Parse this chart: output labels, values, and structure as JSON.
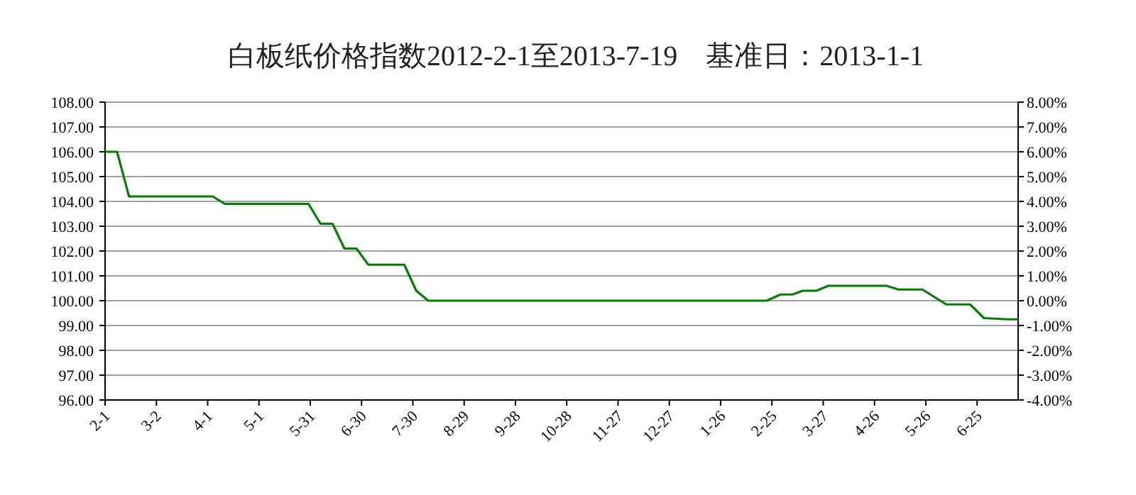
{
  "chart_data": {
    "type": "line",
    "title": "白板纸价格指数2012-2-1至2013-7-19　基准日：2013-1-1",
    "x": [
      "2012-02-01",
      "2012-02-08",
      "2012-02-15",
      "2012-04-04",
      "2012-04-11",
      "2012-05-30",
      "2012-06-06",
      "2012-06-13",
      "2012-06-20",
      "2012-06-27",
      "2012-07-04",
      "2012-07-25",
      "2012-08-01",
      "2012-08-08",
      "2013-02-22",
      "2013-03-02",
      "2013-03-09",
      "2013-03-15",
      "2013-03-23",
      "2013-03-30",
      "2013-05-03",
      "2013-05-10",
      "2013-05-24",
      "2013-06-07",
      "2013-06-21",
      "2013-06-29",
      "2013-07-13",
      "2013-07-19"
    ],
    "series": [
      {
        "color": "#008000",
        "values": [
          106.0,
          106.0,
          104.2,
          104.2,
          103.9,
          103.9,
          103.1,
          103.1,
          102.1,
          102.1,
          101.45,
          101.45,
          100.4,
          100.0,
          100.0,
          100.25,
          100.25,
          100.4,
          100.4,
          100.6,
          100.6,
          100.45,
          100.45,
          99.85,
          99.85,
          99.3,
          99.25,
          99.25
        ]
      }
    ],
    "xlim": [
      "2012-02-01",
      "2013-07-19"
    ],
    "xticks": [
      {
        "value": "2012-02-01",
        "label": "2-1"
      },
      {
        "value": "2012-03-02",
        "label": "3-2"
      },
      {
        "value": "2012-04-01",
        "label": "4-1"
      },
      {
        "value": "2012-05-01",
        "label": "5-1"
      },
      {
        "value": "2012-05-31",
        "label": "5-31"
      },
      {
        "value": "2012-06-30",
        "label": "6-30"
      },
      {
        "value": "2012-07-30",
        "label": "7-30"
      },
      {
        "value": "2012-08-29",
        "label": "8-29"
      },
      {
        "value": "2012-09-28",
        "label": "9-28"
      },
      {
        "value": "2012-10-28",
        "label": "10-28"
      },
      {
        "value": "2012-11-27",
        "label": "11-27"
      },
      {
        "value": "2012-12-27",
        "label": "12-27"
      },
      {
        "value": "2013-01-26",
        "label": "1-26"
      },
      {
        "value": "2013-02-25",
        "label": "2-25"
      },
      {
        "value": "2013-03-27",
        "label": "3-27"
      },
      {
        "value": "2013-04-26",
        "label": "4-26"
      },
      {
        "value": "2013-05-26",
        "label": "5-26"
      },
      {
        "value": "2013-06-25",
        "label": "6-25"
      }
    ],
    "ylim": [
      96,
      108
    ],
    "yticks": [
      {
        "value": 96,
        "label": "96.00"
      },
      {
        "value": 97,
        "label": "97.00"
      },
      {
        "value": 98,
        "label": "98.00"
      },
      {
        "value": 99,
        "label": "99.00"
      },
      {
        "value": 100,
        "label": "100.00"
      },
      {
        "value": 101,
        "label": "101.00"
      },
      {
        "value": 102,
        "label": "102.00"
      },
      {
        "value": 103,
        "label": "103.00"
      },
      {
        "value": 104,
        "label": "104.00"
      },
      {
        "value": 105,
        "label": "105.00"
      },
      {
        "value": 106,
        "label": "106.00"
      },
      {
        "value": 107,
        "label": "107.00"
      },
      {
        "value": 108,
        "label": "108.00"
      }
    ],
    "y2lim": [
      -4,
      8
    ],
    "y2ticks": [
      {
        "value": -4,
        "label": "-4.00%"
      },
      {
        "value": -3,
        "label": "-3.00%"
      },
      {
        "value": -2,
        "label": "-2.00%"
      },
      {
        "value": -1,
        "label": "-1.00%"
      },
      {
        "value": 0,
        "label": "0.00%"
      },
      {
        "value": 1,
        "label": "1.00%"
      },
      {
        "value": 2,
        "label": "2.00%"
      },
      {
        "value": 3,
        "label": "3.00%"
      },
      {
        "value": 4,
        "label": "4.00%"
      },
      {
        "value": 5,
        "label": "5.00%"
      },
      {
        "value": 6,
        "label": "6.00%"
      },
      {
        "value": 7,
        "label": "7.00%"
      },
      {
        "value": 8,
        "label": "8.00%"
      }
    ],
    "grid": "y",
    "marker": "none",
    "line_style": "solid"
  }
}
